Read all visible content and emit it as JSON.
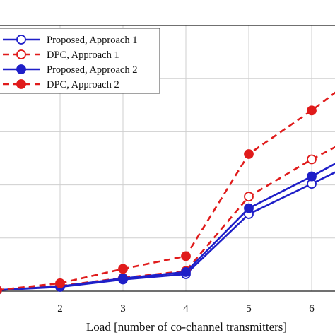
{
  "chart_data": {
    "type": "line",
    "xlabel": "Load [number of co-channel transmitters]",
    "ylabel": "",
    "x": [
      1,
      2,
      3,
      4,
      5,
      6,
      7
    ],
    "xticks": [
      2,
      3,
      4,
      5,
      6
    ],
    "xlim": [
      1,
      7
    ],
    "ylim": [
      0,
      5
    ],
    "yticks": [
      0,
      1,
      2,
      3,
      4,
      5
    ],
    "grid": true,
    "legend_position": "top-left",
    "series": [
      {
        "name": "Proposed, Approach 1",
        "color": "#1f1fc8",
        "dash": "solid",
        "marker": "open",
        "values": [
          0.02,
          0.08,
          0.22,
          0.32,
          1.45,
          2.02,
          2.6
        ]
      },
      {
        "name": "DPC, Approach 1",
        "color": "#e01b1b",
        "dash": "dashed",
        "marker": "open",
        "values": [
          0.02,
          0.1,
          0.25,
          0.38,
          1.78,
          2.48,
          3.1
        ]
      },
      {
        "name": "Proposed, Approach 2",
        "color": "#1f1fc8",
        "dash": "solid",
        "marker": "filled",
        "values": [
          0.02,
          0.09,
          0.24,
          0.36,
          1.56,
          2.16,
          2.8
        ]
      },
      {
        "name": "DPC, Approach 2",
        "color": "#e01b1b",
        "dash": "dashed",
        "marker": "filled",
        "values": [
          0.02,
          0.15,
          0.42,
          0.66,
          2.58,
          3.4,
          4.3
        ]
      }
    ]
  }
}
